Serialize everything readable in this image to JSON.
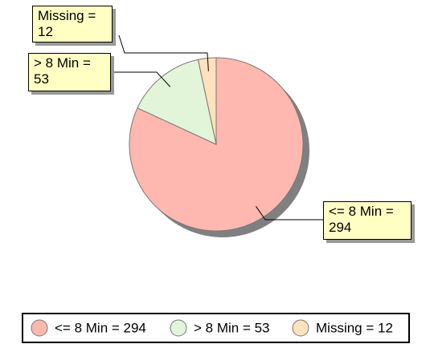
{
  "chart_data": {
    "type": "pie",
    "categories": [
      "<= 8 Min = 294",
      "> 8 Min = 53",
      "Missing = 12"
    ],
    "values": [
      294,
      53,
      12
    ],
    "value_labels": [
      "<= 8 Min = 294",
      "> 8 Min = 53",
      "Missing = 12"
    ],
    "colors": [
      "#ffb8b0",
      "#e2f5d9",
      "#fde2bd"
    ]
  }
}
